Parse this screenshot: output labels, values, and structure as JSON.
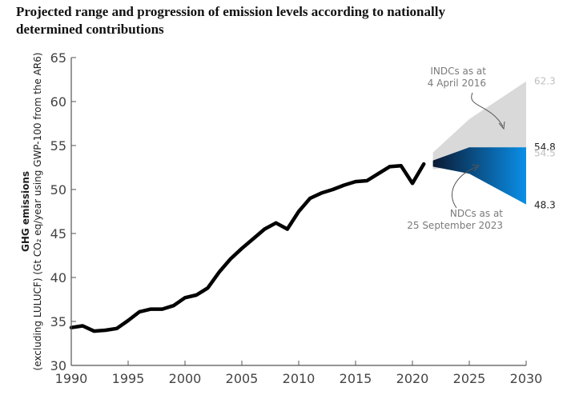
{
  "title_lines": [
    "Projected range and progression of emission levels according to nationally",
    "determined contributions"
  ],
  "colors": {
    "historical": "#000000",
    "indc_band": "#d9d9d9",
    "ndc_band_dark": "#0a1a33",
    "ndc_band_light": "#0a8fe8",
    "axis": "#555555",
    "label_grey": "#7a7a7a",
    "value_light": "#bfbfbf"
  },
  "chart_data": {
    "type": "area",
    "title": "Projected range and progression of emission levels according to nationally determined contributions",
    "ylabel_lines": [
      "GHG emissions",
      "(excluding LULUCF) (Gt CO₂ eq/year using GWP-100 from the AR6)"
    ],
    "xlabel": "",
    "xlim": [
      1990,
      2030
    ],
    "ylim": [
      30,
      65
    ],
    "x_ticks": [
      1990,
      1995,
      2000,
      2005,
      2010,
      2015,
      2020,
      2025,
      2030
    ],
    "y_ticks": [
      30,
      35,
      40,
      45,
      50,
      55,
      60,
      65
    ],
    "grid": false,
    "series": [
      {
        "type": "line",
        "x": [
          1990,
          1991,
          1992,
          1993,
          1994,
          1995,
          1996,
          1997,
          1998,
          1999,
          2000,
          2001,
          2002,
          2003,
          2004,
          2005,
          2006,
          2007,
          2008,
          2009,
          2010,
          2011,
          2012,
          2013,
          2014,
          2015,
          2016,
          2017,
          2018,
          2019,
          2020,
          2021
        ],
        "y": [
          34.3,
          34.5,
          33.9,
          34.0,
          34.2,
          35.1,
          36.1,
          36.4,
          36.4,
          36.8,
          37.7,
          38.0,
          38.8,
          40.6,
          42.1,
          43.3,
          44.4,
          45.5,
          46.2,
          45.5,
          47.5,
          49.0,
          49.6,
          50.0,
          50.5,
          50.9,
          51.0,
          51.8,
          52.6,
          52.7,
          50.7,
          52.9
        ]
      },
      {
        "type": "area",
        "x": [
          2021.8,
          2025,
          2030
        ],
        "upper": [
          54.2,
          58.0,
          62.3
        ],
        "lower": [
          52.3,
          52.8,
          54.5
        ]
      },
      {
        "type": "area",
        "x": [
          2021.8,
          2025,
          2030
        ],
        "upper": [
          53.3,
          54.8,
          54.8
        ],
        "lower": [
          52.6,
          51.8,
          48.3
        ]
      }
    ],
    "annotations": [
      {
        "lines": [
          "INDCs as at",
          "4 April 2016"
        ]
      },
      {
        "lines": [
          "NDCs as at",
          "25 September 2023"
        ]
      }
    ],
    "end_labels": [
      {
        "text": "62.3",
        "value": 62.3,
        "tone": "light"
      },
      {
        "text": "54.8",
        "value": 54.8,
        "tone": "dark"
      },
      {
        "text": "54.5",
        "value": 54.5,
        "tone": "light"
      },
      {
        "text": "48.3",
        "value": 48.3,
        "tone": "dark"
      }
    ]
  }
}
